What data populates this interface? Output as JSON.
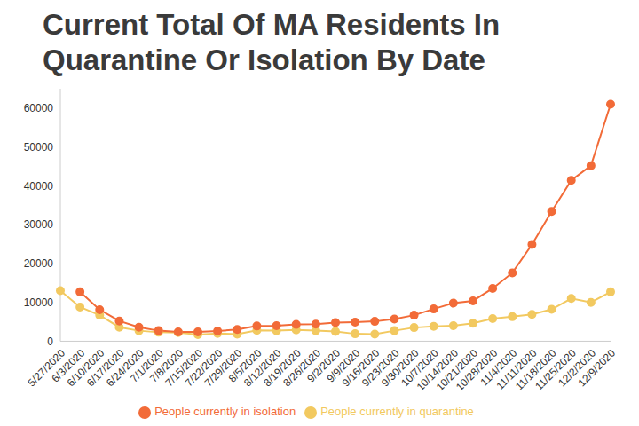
{
  "chart_data": {
    "type": "line",
    "title": "Current Total Of MA Residents In Quarantine Or Isolation By Date",
    "categories": [
      "5/27/2020",
      "6/3/2020",
      "6/10/2020",
      "6/17/2020",
      "6/24/2020",
      "7/1/2020",
      "7/8/2020",
      "7/15/2020",
      "7/22/2020",
      "7/29/2020",
      "8/5/2020",
      "8/12/2020",
      "8/19/2020",
      "8/26/2020",
      "9/2/2020",
      "9/9/2020",
      "9/16/2020",
      "9/23/2020",
      "9/30/2020",
      "10/7/2020",
      "10/14/2020",
      "10/21/2020",
      "10/28/2020",
      "11/4/2020",
      "11/11/2020",
      "11/18/2020",
      "11/25/2020",
      "12/2/2020",
      "12/9/2020"
    ],
    "series": [
      {
        "name": "People currently in quarantine",
        "color": "#f2c960",
        "marker": "circle",
        "values": [
          13000,
          8800,
          6700,
          3600,
          2700,
          2300,
          2200,
          1700,
          2000,
          1800,
          2800,
          2700,
          2900,
          2700,
          2500,
          1900,
          1800,
          2700,
          3500,
          3800,
          4000,
          4600,
          5800,
          6300,
          6900,
          8200,
          11000,
          10000,
          12700
        ]
      },
      {
        "name": "People currently in isolation",
        "color": "#f26b38",
        "marker": "circle",
        "values": [
          null,
          12700,
          8100,
          5200,
          3600,
          2700,
          2400,
          2400,
          2600,
          3000,
          3900,
          4000,
          4300,
          4400,
          4800,
          4900,
          5100,
          5700,
          6700,
          8300,
          9800,
          10400,
          13600,
          17600,
          24900,
          33400,
          41400,
          45200,
          61000
        ]
      }
    ],
    "ylim": [
      0,
      65000
    ],
    "yticks": [
      0,
      10000,
      20000,
      30000,
      40000,
      50000,
      60000
    ],
    "grid": false,
    "legend": "bottom"
  }
}
